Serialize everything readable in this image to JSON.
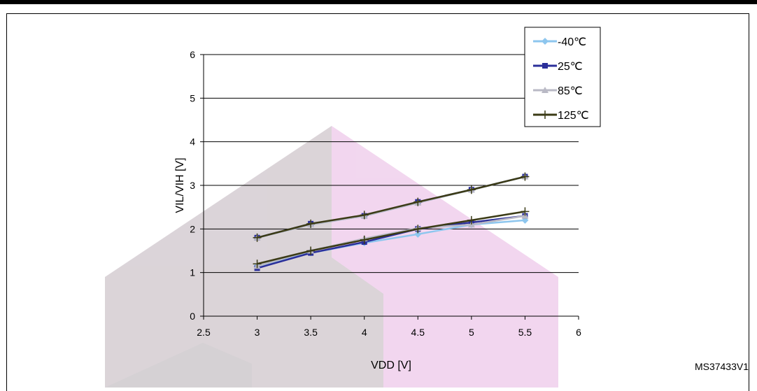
{
  "figure_id": "MS37433V1",
  "colors": {
    "watermark_gray": "#cfc6cc",
    "watermark_pink": "#eec9ea",
    "grid": "#000000"
  },
  "chart_data": {
    "type": "line",
    "xlabel": "VDD [V]",
    "ylabel": "VIL/VIH [V]",
    "xlim": [
      2.5,
      6
    ],
    "ylim": [
      0,
      6
    ],
    "x_ticks": [
      "2.5",
      "3",
      "3.5",
      "4",
      "4.5",
      "5",
      "5.5",
      "6"
    ],
    "y_ticks": [
      "0",
      "1",
      "2",
      "3",
      "4",
      "5",
      "6"
    ],
    "grid": "horizontal",
    "legend_position": "top-right",
    "x": [
      3,
      3.5,
      4,
      4.5,
      5,
      5.5
    ],
    "series": [
      {
        "name": "-40℃",
        "color": "#8dc6ee",
        "marker": "diamond",
        "vil": [
          1.15,
          1.45,
          1.68,
          1.88,
          2.1,
          2.2
        ],
        "vih": [
          1.8,
          2.1,
          2.3,
          2.6,
          2.9,
          3.2
        ]
      },
      {
        "name": "25℃",
        "color": "#2b2f9a",
        "marker": "square",
        "vil": [
          1.1,
          1.45,
          1.7,
          2.0,
          2.15,
          2.3
        ],
        "vih": [
          1.8,
          2.12,
          2.3,
          2.62,
          2.9,
          3.2
        ]
      },
      {
        "name": "85℃",
        "color": "#b9b9c5",
        "marker": "triangle",
        "vil": [
          1.15,
          1.5,
          1.78,
          2.02,
          2.1,
          2.3
        ],
        "vih": [
          1.8,
          2.1,
          2.3,
          2.6,
          2.9,
          3.2
        ]
      },
      {
        "name": "125℃",
        "color": "#3b3b16",
        "marker": "plus",
        "vil": [
          1.2,
          1.5,
          1.75,
          2.0,
          2.2,
          2.4
        ],
        "vih": [
          1.8,
          2.12,
          2.32,
          2.62,
          2.9,
          3.2
        ]
      }
    ]
  }
}
